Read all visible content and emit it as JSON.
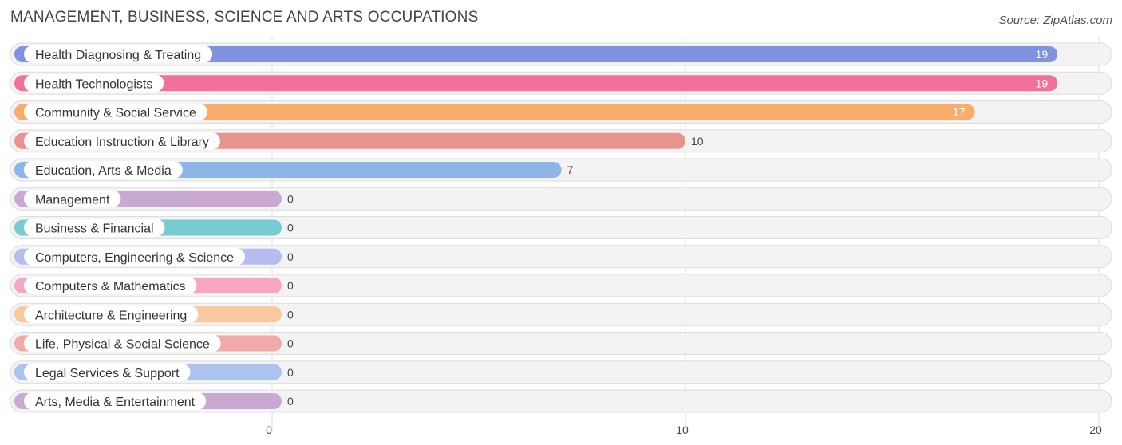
{
  "header": {
    "title": "MANAGEMENT, BUSINESS, SCIENCE AND ARTS OCCUPATIONS",
    "source": "Source: ZipAtlas.com"
  },
  "chart_data": {
    "type": "bar",
    "orientation": "horizontal",
    "title": "MANAGEMENT, BUSINESS, SCIENCE AND ARTS OCCUPATIONS",
    "source": "Source: ZipAtlas.com",
    "xlabel": "",
    "ylabel": "",
    "xlim": [
      0,
      20
    ],
    "xticks": [
      0,
      10,
      20
    ],
    "grid": true,
    "categories": [
      "Health Diagnosing & Treating",
      "Health Technologists",
      "Community & Social Service",
      "Education Instruction & Library",
      "Education, Arts & Media",
      "Management",
      "Business & Financial",
      "Computers, Engineering & Science",
      "Computers & Mathematics",
      "Architecture & Engineering",
      "Life, Physical & Social Science",
      "Legal Services & Support",
      "Arts, Media & Entertainment"
    ],
    "values": [
      19,
      19,
      17,
      10,
      7,
      0,
      0,
      0,
      0,
      0,
      0,
      0,
      0
    ],
    "value_labels": [
      "19",
      "19",
      "17",
      "10",
      "7",
      "0",
      "0",
      "0",
      "0",
      "0",
      "0",
      "0",
      "0"
    ],
    "colors": [
      "#7f93e0",
      "#f2709a",
      "#f8ad6a",
      "#e9938f",
      "#8db6e7",
      "#c9a9d2",
      "#77ccd2",
      "#b5bcef",
      "#f6a6c3",
      "#f8c89e",
      "#f0aaa7",
      "#aac4ee",
      "#c9a9d2"
    ]
  }
}
